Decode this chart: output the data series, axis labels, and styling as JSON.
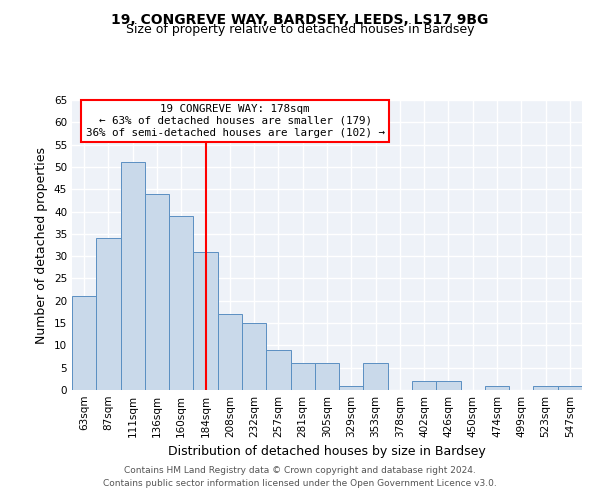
{
  "title1": "19, CONGREVE WAY, BARDSEY, LEEDS, LS17 9BG",
  "title2": "Size of property relative to detached houses in Bardsey",
  "xlabel": "Distribution of detached houses by size in Bardsey",
  "ylabel": "Number of detached properties",
  "bin_labels": [
    "63sqm",
    "87sqm",
    "111sqm",
    "136sqm",
    "160sqm",
    "184sqm",
    "208sqm",
    "232sqm",
    "257sqm",
    "281sqm",
    "305sqm",
    "329sqm",
    "353sqm",
    "378sqm",
    "402sqm",
    "426sqm",
    "450sqm",
    "474sqm",
    "499sqm",
    "523sqm",
    "547sqm"
  ],
  "bar_values": [
    21,
    34,
    51,
    44,
    39,
    31,
    17,
    15,
    9,
    6,
    6,
    1,
    6,
    0,
    2,
    2,
    0,
    1,
    0,
    1,
    1
  ],
  "bar_color": "#c9d9ea",
  "bar_edge_color": "#5a8fc2",
  "vline_x": 5,
  "vline_color": "red",
  "annotation_text": "19 CONGREVE WAY: 178sqm\n← 63% of detached houses are smaller (179)\n36% of semi-detached houses are larger (102) →",
  "annotation_box_color": "white",
  "annotation_box_edge": "red",
  "ylim": [
    0,
    65
  ],
  "yticks": [
    0,
    5,
    10,
    15,
    20,
    25,
    30,
    35,
    40,
    45,
    50,
    55,
    60,
    65
  ],
  "footnote": "Contains HM Land Registry data © Crown copyright and database right 2024.\nContains public sector information licensed under the Open Government Licence v3.0.",
  "background_color": "#eef2f8",
  "grid_color": "white",
  "title_fontsize": 10,
  "subtitle_fontsize": 9,
  "axis_label_fontsize": 9,
  "tick_fontsize": 7.5,
  "footnote_fontsize": 6.5
}
